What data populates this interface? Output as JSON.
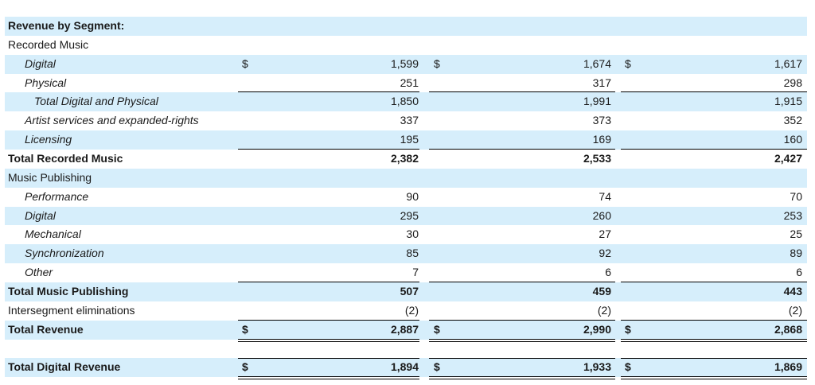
{
  "title": "Revenue by Segment:",
  "rows": {
    "recorded_music": {
      "label": "Recorded Music"
    },
    "digital": {
      "label": "Digital",
      "c1_cur": "$",
      "c1": "1,599",
      "c2_cur": "$",
      "c2": "1,674",
      "c3_cur": "$",
      "c3": "1,617"
    },
    "physical": {
      "label": "Physical",
      "c1": "251",
      "c2": "317",
      "c3": "298"
    },
    "total_dp": {
      "label": "Total Digital and Physical",
      "c1": "1,850",
      "c2": "1,991",
      "c3": "1,915"
    },
    "artist": {
      "label": "Artist services and expanded-rights",
      "c1": "337",
      "c2": "373",
      "c3": "352"
    },
    "licensing": {
      "label": "Licensing",
      "c1": "195",
      "c2": "169",
      "c3": "160"
    },
    "total_rm": {
      "label": "Total Recorded Music",
      "c1": "2,382",
      "c2": "2,533",
      "c3": "2,427"
    },
    "music_pub": {
      "label": "Music Publishing"
    },
    "performance": {
      "label": "Performance",
      "c1": "90",
      "c2": "74",
      "c3": "70"
    },
    "mp_digital": {
      "label": "Digital",
      "c1": "295",
      "c2": "260",
      "c3": "253"
    },
    "mechanical": {
      "label": "Mechanical",
      "c1": "30",
      "c2": "27",
      "c3": "25"
    },
    "sync": {
      "label": "Synchronization",
      "c1": "85",
      "c2": "92",
      "c3": "89"
    },
    "other": {
      "label": "Other",
      "c1": "7",
      "c2": "6",
      "c3": "6"
    },
    "total_mp": {
      "label": "Total Music Publishing",
      "c1": "507",
      "c2": "459",
      "c3": "443"
    },
    "interseg": {
      "label": "Intersegment eliminations",
      "c1": "(2)",
      "c2": "(2)",
      "c3": "(2)"
    },
    "total_rev": {
      "label": "Total Revenue",
      "c1_cur": "$",
      "c1": "2,887",
      "c2_cur": "$",
      "c2": "2,990",
      "c3_cur": "$",
      "c3": "2,868"
    },
    "total_digital": {
      "label": "Total Digital Revenue",
      "c1_cur": "$",
      "c1": "1,894",
      "c2_cur": "$",
      "c2": "1,933",
      "c3_cur": "$",
      "c3": "1,869"
    }
  }
}
